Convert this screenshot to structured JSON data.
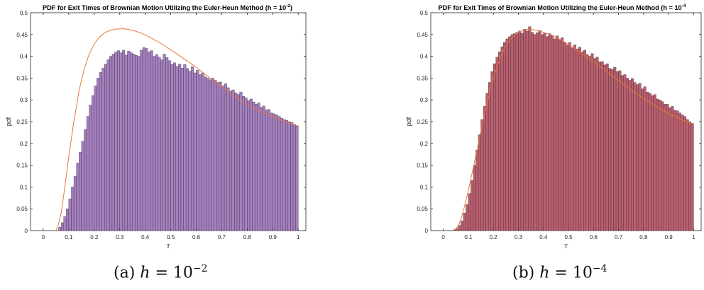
{
  "chart_data": [
    {
      "type": "bar",
      "title_prefix": "PDF for Exit Times of Brownian Motion Utilizing the Euler-Heun Method (h = 10",
      "title_exp": "-2",
      "title_suffix": ")",
      "xlabel": "τ",
      "ylabel": "pdf",
      "xlim": [
        -0.05,
        1.03
      ],
      "ylim": [
        0,
        0.5
      ],
      "xticks": [
        "0",
        "0.1",
        "0.2",
        "0.3",
        "0.4",
        "0.5",
        "0.6",
        "0.7",
        "0.8",
        "0.9",
        "1"
      ],
      "yticks": [
        "0",
        "0.05",
        "0.1",
        "0.15",
        "0.2",
        "0.25",
        "0.3",
        "0.35",
        "0.4",
        "0.45",
        "0.5"
      ],
      "bar_color": "#a57fc0",
      "curve_color": "#e8783a",
      "bin_width": 0.01,
      "x": [
        0.065,
        0.075,
        0.085,
        0.095,
        0.105,
        0.115,
        0.125,
        0.135,
        0.145,
        0.155,
        0.165,
        0.175,
        0.185,
        0.195,
        0.205,
        0.215,
        0.225,
        0.235,
        0.245,
        0.255,
        0.265,
        0.275,
        0.285,
        0.295,
        0.305,
        0.315,
        0.325,
        0.335,
        0.345,
        0.355,
        0.365,
        0.375,
        0.385,
        0.395,
        0.405,
        0.415,
        0.425,
        0.435,
        0.445,
        0.455,
        0.465,
        0.475,
        0.485,
        0.495,
        0.505,
        0.515,
        0.525,
        0.535,
        0.545,
        0.555,
        0.565,
        0.575,
        0.585,
        0.595,
        0.605,
        0.615,
        0.625,
        0.635,
        0.645,
        0.655,
        0.665,
        0.675,
        0.685,
        0.695,
        0.705,
        0.715,
        0.725,
        0.735,
        0.745,
        0.755,
        0.765,
        0.775,
        0.785,
        0.795,
        0.805,
        0.815,
        0.825,
        0.835,
        0.845,
        0.855,
        0.865,
        0.875,
        0.885,
        0.895,
        0.905,
        0.915,
        0.925,
        0.935,
        0.945,
        0.955,
        0.965,
        0.975,
        0.985,
        0.995
      ],
      "values": [
        0.008,
        0.018,
        0.032,
        0.05,
        0.073,
        0.1,
        0.125,
        0.155,
        0.18,
        0.205,
        0.232,
        0.262,
        0.288,
        0.31,
        0.332,
        0.35,
        0.363,
        0.373,
        0.382,
        0.392,
        0.4,
        0.405,
        0.41,
        0.413,
        0.408,
        0.414,
        0.403,
        0.412,
        0.408,
        0.405,
        0.402,
        0.4,
        0.414,
        0.42,
        0.418,
        0.41,
        0.413,
        0.4,
        0.404,
        0.398,
        0.392,
        0.405,
        0.397,
        0.39,
        0.381,
        0.385,
        0.377,
        0.382,
        0.373,
        0.381,
        0.372,
        0.366,
        0.376,
        0.362,
        0.368,
        0.358,
        0.362,
        0.353,
        0.35,
        0.346,
        0.35,
        0.345,
        0.34,
        0.341,
        0.332,
        0.337,
        0.328,
        0.32,
        0.323,
        0.316,
        0.312,
        0.318,
        0.308,
        0.305,
        0.298,
        0.302,
        0.295,
        0.29,
        0.293,
        0.283,
        0.286,
        0.277,
        0.278,
        0.27,
        0.268,
        0.266,
        0.262,
        0.258,
        0.255,
        0.253,
        0.25,
        0.248,
        0.244,
        0.24
      ],
      "curve_x": [
        0.05,
        0.06,
        0.07,
        0.08,
        0.09,
        0.1,
        0.12,
        0.14,
        0.16,
        0.18,
        0.2,
        0.22,
        0.24,
        0.26,
        0.28,
        0.3,
        0.32,
        0.34,
        0.36,
        0.38,
        0.4,
        0.43,
        0.46,
        0.5,
        0.55,
        0.6,
        0.65,
        0.7,
        0.75,
        0.8,
        0.85,
        0.9,
        0.95,
        1.0
      ],
      "curve_y": [
        0.0,
        0.015,
        0.04,
        0.08,
        0.125,
        0.17,
        0.25,
        0.32,
        0.37,
        0.405,
        0.428,
        0.444,
        0.454,
        0.459,
        0.462,
        0.463,
        0.463,
        0.461,
        0.458,
        0.454,
        0.449,
        0.44,
        0.43,
        0.415,
        0.395,
        0.375,
        0.352,
        0.33,
        0.308,
        0.29,
        0.274,
        0.262,
        0.25,
        0.24
      ],
      "caption_prefix": "(a) ",
      "caption_var": "h",
      "caption_mid": " = 10",
      "caption_exp": "−2"
    },
    {
      "type": "bar",
      "title_prefix": "PDF for Exit Times of Brownian Motion Utilizing the Euler-Heun Method (h = 10",
      "title_exp": "-4",
      "title_suffix": "",
      "xlabel": "τ",
      "ylabel": "pdf",
      "xlim": [
        -0.05,
        1.03
      ],
      "ylim": [
        0,
        0.5
      ],
      "xticks": [
        "0",
        "0.1",
        "0.2",
        "0.3",
        "0.4",
        "0.5",
        "0.6",
        "0.7",
        "0.8",
        "0.9",
        "1"
      ],
      "yticks": [
        "0",
        "0.05",
        "0.1",
        "0.15",
        "0.2",
        "0.25",
        "0.3",
        "0.35",
        "0.4",
        "0.45",
        "0.5"
      ],
      "bar_color": "#bb5e6e",
      "curve_color": "#e8783a",
      "bin_width": 0.01,
      "x": [
        0.045,
        0.055,
        0.065,
        0.075,
        0.085,
        0.095,
        0.105,
        0.115,
        0.125,
        0.135,
        0.145,
        0.155,
        0.165,
        0.175,
        0.185,
        0.195,
        0.205,
        0.215,
        0.225,
        0.235,
        0.245,
        0.255,
        0.265,
        0.275,
        0.285,
        0.295,
        0.305,
        0.315,
        0.325,
        0.335,
        0.345,
        0.355,
        0.365,
        0.375,
        0.385,
        0.395,
        0.405,
        0.415,
        0.425,
        0.435,
        0.445,
        0.455,
        0.465,
        0.475,
        0.485,
        0.495,
        0.505,
        0.515,
        0.525,
        0.535,
        0.545,
        0.555,
        0.565,
        0.575,
        0.585,
        0.595,
        0.605,
        0.615,
        0.625,
        0.635,
        0.645,
        0.655,
        0.665,
        0.675,
        0.685,
        0.695,
        0.705,
        0.715,
        0.725,
        0.735,
        0.745,
        0.755,
        0.765,
        0.775,
        0.785,
        0.795,
        0.805,
        0.815,
        0.825,
        0.835,
        0.845,
        0.855,
        0.865,
        0.875,
        0.885,
        0.895,
        0.905,
        0.915,
        0.925,
        0.935,
        0.945,
        0.955,
        0.965,
        0.975,
        0.985,
        0.995
      ],
      "values": [
        0.002,
        0.005,
        0.012,
        0.022,
        0.04,
        0.06,
        0.085,
        0.115,
        0.15,
        0.185,
        0.22,
        0.255,
        0.285,
        0.315,
        0.34,
        0.365,
        0.383,
        0.398,
        0.41,
        0.422,
        0.432,
        0.44,
        0.445,
        0.45,
        0.452,
        0.455,
        0.458,
        0.453,
        0.462,
        0.458,
        0.468,
        0.455,
        0.45,
        0.454,
        0.459,
        0.45,
        0.453,
        0.445,
        0.452,
        0.448,
        0.44,
        0.447,
        0.438,
        0.443,
        0.432,
        0.426,
        0.432,
        0.419,
        0.426,
        0.417,
        0.421,
        0.41,
        0.414,
        0.404,
        0.4,
        0.406,
        0.395,
        0.398,
        0.387,
        0.388,
        0.38,
        0.383,
        0.372,
        0.37,
        0.375,
        0.365,
        0.367,
        0.356,
        0.358,
        0.35,
        0.345,
        0.349,
        0.34,
        0.335,
        0.338,
        0.325,
        0.33,
        0.318,
        0.315,
        0.31,
        0.312,
        0.302,
        0.3,
        0.296,
        0.29,
        0.29,
        0.282,
        0.285,
        0.276,
        0.275,
        0.27,
        0.266,
        0.262,
        0.255,
        0.25,
        0.246
      ],
      "curve_x": [
        0.04,
        0.05,
        0.06,
        0.07,
        0.08,
        0.09,
        0.1,
        0.12,
        0.14,
        0.16,
        0.18,
        0.2,
        0.22,
        0.24,
        0.26,
        0.28,
        0.3,
        0.32,
        0.34,
        0.36,
        0.38,
        0.4,
        0.43,
        0.46,
        0.5,
        0.55,
        0.6,
        0.65,
        0.7,
        0.75,
        0.8,
        0.85,
        0.9,
        0.95,
        1.0
      ],
      "curve_y": [
        0.0,
        0.004,
        0.012,
        0.025,
        0.045,
        0.068,
        0.092,
        0.145,
        0.2,
        0.255,
        0.305,
        0.35,
        0.385,
        0.413,
        0.433,
        0.446,
        0.455,
        0.46,
        0.462,
        0.461,
        0.459,
        0.455,
        0.449,
        0.441,
        0.427,
        0.408,
        0.388,
        0.366,
        0.344,
        0.323,
        0.303,
        0.285,
        0.269,
        0.255,
        0.242
      ],
      "caption_prefix": "(b) ",
      "caption_var": "h",
      "caption_mid": " = 10",
      "caption_exp": "−4"
    }
  ]
}
